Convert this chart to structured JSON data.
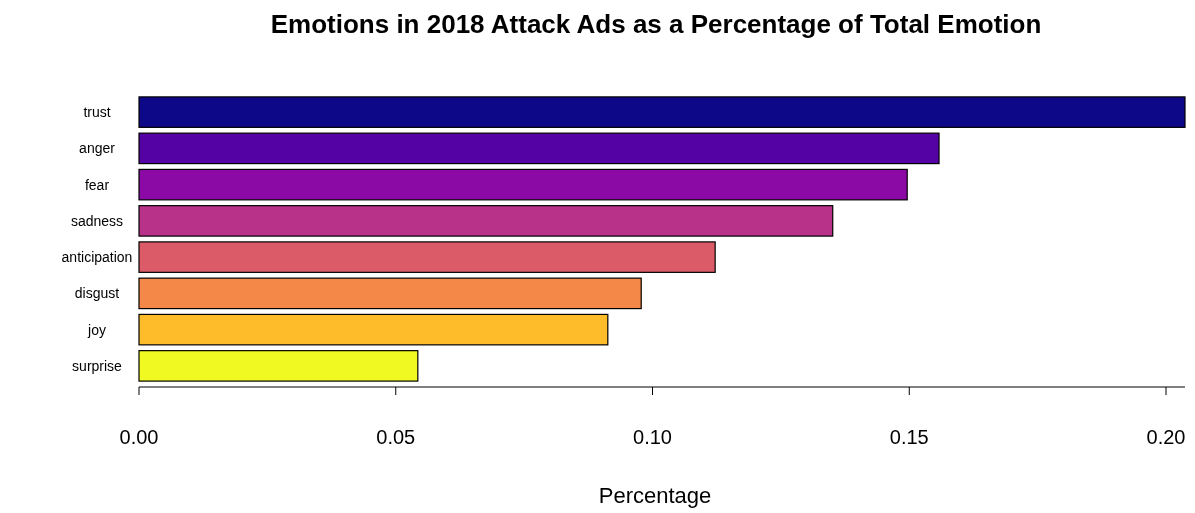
{
  "chart_data": {
    "type": "bar",
    "orientation": "horizontal",
    "title": "Emotions in 2018 Attack Ads as a Percentage of Total Emotion",
    "xlabel": "Percentage",
    "categories": [
      "trust",
      "anger",
      "fear",
      "sadness",
      "anticipation",
      "disgust",
      "joy",
      "surprise"
    ],
    "values": [
      0.2037,
      0.1558,
      0.1496,
      0.1351,
      0.1122,
      0.0978,
      0.0913,
      0.0543
    ],
    "colors": [
      "#0d0887",
      "#5402a3",
      "#8b0aa5",
      "#b93289",
      "#db5c68",
      "#f48849",
      "#febc2a",
      "#f0f921"
    ],
    "xlim": [
      0,
      0.2037
    ],
    "xticks": [
      {
        "value": 0,
        "label": "0.00"
      },
      {
        "value": 0.05,
        "label": "0.05"
      },
      {
        "value": 0.1,
        "label": "0.10"
      },
      {
        "value": 0.15,
        "label": "0.15"
      },
      {
        "value": 0.2,
        "label": "0.20"
      }
    ],
    "grid": false
  }
}
